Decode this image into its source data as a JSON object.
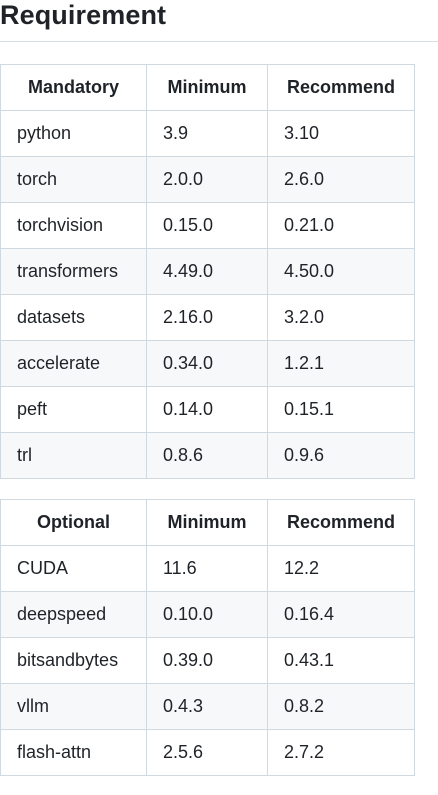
{
  "heading": "Requirement",
  "mandatory_table": {
    "headers": [
      "Mandatory",
      "Minimum",
      "Recommend"
    ],
    "rows": [
      [
        "python",
        "3.9",
        "3.10"
      ],
      [
        "torch",
        "2.0.0",
        "2.6.0"
      ],
      [
        "torchvision",
        "0.15.0",
        "0.21.0"
      ],
      [
        "transformers",
        "4.49.0",
        "4.50.0"
      ],
      [
        "datasets",
        "2.16.0",
        "3.2.0"
      ],
      [
        "accelerate",
        "0.34.0",
        "1.2.1"
      ],
      [
        "peft",
        "0.14.0",
        "0.15.1"
      ],
      [
        "trl",
        "0.8.6",
        "0.9.6"
      ]
    ]
  },
  "optional_table": {
    "headers": [
      "Optional",
      "Minimum",
      "Recommend"
    ],
    "rows": [
      [
        "CUDA",
        "11.6",
        "12.2"
      ],
      [
        "deepspeed",
        "0.10.0",
        "0.16.4"
      ],
      [
        "bitsandbytes",
        "0.39.0",
        "0.43.1"
      ],
      [
        "vllm",
        "0.4.3",
        "0.8.2"
      ],
      [
        "flash-attn",
        "2.5.6",
        "2.7.2"
      ]
    ]
  }
}
